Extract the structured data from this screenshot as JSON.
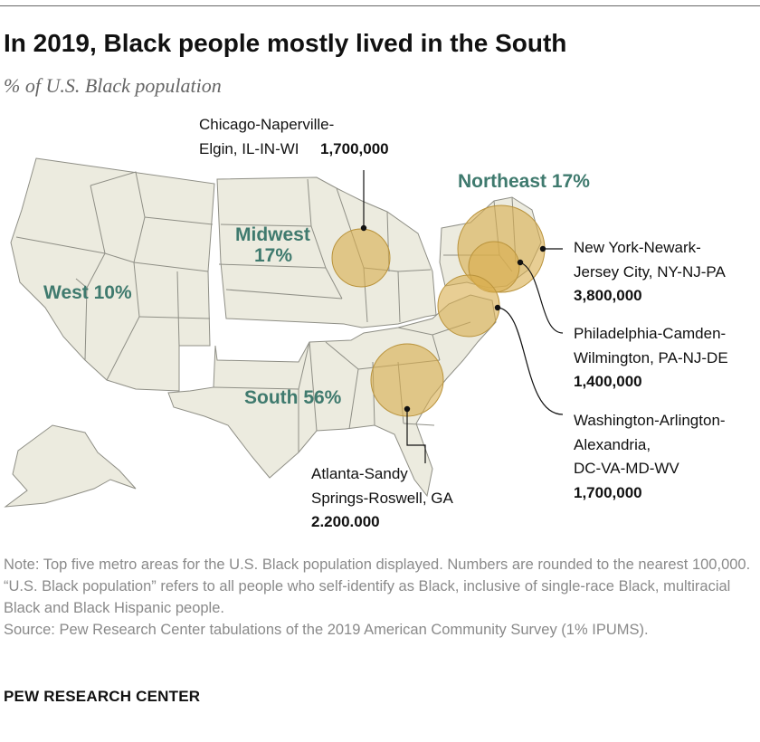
{
  "title": "In 2019, Black people mostly lived in the South",
  "subtitle": "% of U.S. Black population",
  "regions": {
    "west": "West 10%",
    "midwest_line1": "Midwest",
    "midwest_line2": "17%",
    "northeast": "Northeast 17%",
    "south": "South 56%"
  },
  "metros": {
    "chicago": {
      "name_line1": "Chicago-Naperville-",
      "name_line2": "Elgin, IL-IN-WI",
      "population": "1,700,000"
    },
    "new_york": {
      "name_line1": "New York-Newark-",
      "name_line2": "Jersey City, NY-NJ-PA",
      "population": "3,800,000"
    },
    "philadelphia": {
      "name_line1": "Philadelphia-Camden-",
      "name_line2": "Wilmington, PA-NJ-DE",
      "population": "1,400,000"
    },
    "washington": {
      "name_line1": "Washington-Arlington-",
      "name_line2": "Alexandria,",
      "name_line3": "DC-VA-MD-WV",
      "population": "1,700,000"
    },
    "atlanta": {
      "name_line1": "Atlanta-Sandy",
      "name_line2": "Springs-Roswell, GA",
      "population": "2.200.000"
    }
  },
  "notes": {
    "note": "Note: Top five metro areas for the U.S. Black population displayed. Numbers are rounded to the nearest 100,000. “U.S. Black population” refers to all people who self-identify as Black, inclusive of single-race Black, multiracial Black and Black Hispanic people.",
    "source": "Source: Pew Research Center tabulations of the 2019 American Community Survey (1% IPUMS)."
  },
  "footer": "PEW RESEARCH CENTER",
  "colors": {
    "land": "#ecebdf",
    "border": "#8f8f86",
    "bubble": "#d9ae4c",
    "region_label": "#3f7a6e"
  }
}
